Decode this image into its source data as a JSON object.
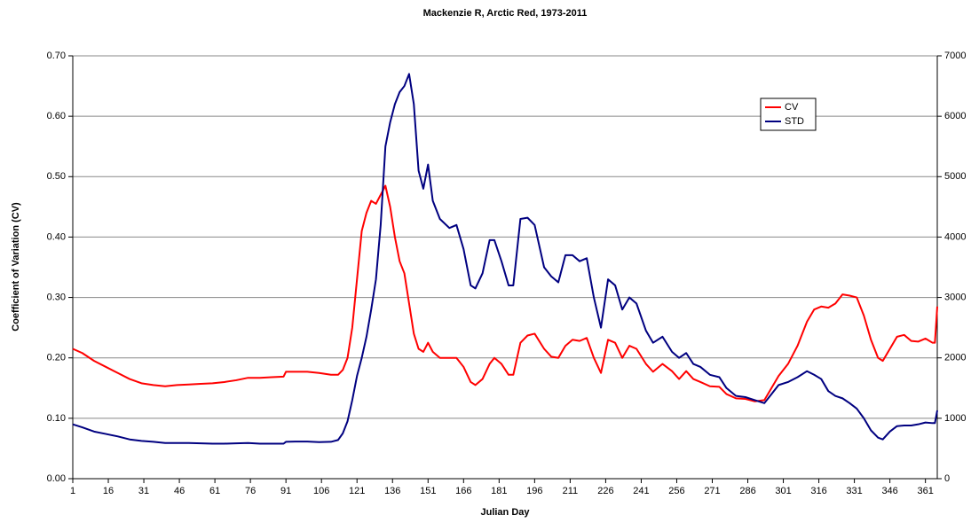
{
  "chart_data": {
    "type": "line",
    "title": "Mackenzie R, Arctic Red, 1973-2011",
    "x_label": "Julian Day",
    "y_label": "Coefficient of Variation (CV)",
    "x": [
      1,
      5,
      10,
      15,
      20,
      25,
      30,
      35,
      40,
      45,
      50,
      55,
      60,
      65,
      70,
      75,
      80,
      85,
      90,
      91,
      95,
      100,
      105,
      110,
      113,
      115,
      117,
      119,
      121,
      123,
      125,
      127,
      129,
      131,
      133,
      135,
      137,
      139,
      141,
      143,
      145,
      147,
      149,
      151,
      153,
      156,
      160,
      163,
      166,
      169,
      171,
      174,
      177,
      179,
      182,
      185,
      187,
      190,
      193,
      196,
      200,
      203,
      206,
      209,
      212,
      215,
      218,
      221,
      224,
      227,
      230,
      233,
      236,
      239,
      243,
      246,
      250,
      254,
      257,
      260,
      263,
      266,
      270,
      274,
      277,
      281,
      285,
      289,
      293,
      296,
      299,
      303,
      307,
      311,
      314,
      317,
      320,
      323,
      326,
      329,
      332,
      335,
      338,
      341,
      343,
      346,
      349,
      352,
      355,
      358,
      361,
      364,
      365,
      366
    ],
    "series": [
      {
        "name": "CV",
        "color": "#ff0000",
        "axis": "y",
        "values": [
          0.215,
          0.208,
          0.195,
          0.185,
          0.175,
          0.165,
          0.158,
          0.155,
          0.153,
          0.155,
          0.156,
          0.157,
          0.158,
          0.16,
          0.163,
          0.167,
          0.167,
          0.168,
          0.169,
          0.177,
          0.177,
          0.177,
          0.175,
          0.172,
          0.172,
          0.18,
          0.2,
          0.25,
          0.33,
          0.41,
          0.44,
          0.46,
          0.455,
          0.47,
          0.485,
          0.45,
          0.4,
          0.36,
          0.34,
          0.29,
          0.24,
          0.215,
          0.21,
          0.225,
          0.21,
          0.2,
          0.2,
          0.2,
          0.185,
          0.16,
          0.155,
          0.165,
          0.19,
          0.2,
          0.19,
          0.172,
          0.172,
          0.225,
          0.237,
          0.24,
          0.215,
          0.202,
          0.2,
          0.22,
          0.23,
          0.228,
          0.233,
          0.2,
          0.175,
          0.23,
          0.225,
          0.2,
          0.22,
          0.215,
          0.19,
          0.177,
          0.19,
          0.178,
          0.165,
          0.178,
          0.165,
          0.16,
          0.153,
          0.152,
          0.14,
          0.133,
          0.132,
          0.128,
          0.13,
          0.15,
          0.17,
          0.19,
          0.22,
          0.26,
          0.28,
          0.285,
          0.283,
          0.29,
          0.305,
          0.303,
          0.3,
          0.27,
          0.23,
          0.2,
          0.195,
          0.215,
          0.235,
          0.238,
          0.228,
          0.227,
          0.232,
          0.225,
          0.225,
          0.285
        ]
      },
      {
        "name": "STD",
        "color": "#000080",
        "axis": "y2",
        "values": [
          900,
          850,
          780,
          740,
          700,
          650,
          625,
          610,
          590,
          590,
          590,
          585,
          580,
          580,
          585,
          590,
          580,
          580,
          580,
          610,
          615,
          615,
          605,
          610,
          640,
          750,
          950,
          1300,
          1700,
          2000,
          2350,
          2800,
          3300,
          4200,
          5500,
          5900,
          6200,
          6400,
          6500,
          6700,
          6200,
          5100,
          4800,
          5200,
          4600,
          4300,
          4150,
          4200,
          3800,
          3200,
          3150,
          3400,
          3950,
          3950,
          3600,
          3200,
          3200,
          4300,
          4320,
          4200,
          3500,
          3350,
          3250,
          3700,
          3700,
          3600,
          3650,
          3000,
          2500,
          3300,
          3200,
          2800,
          3000,
          2900,
          2450,
          2250,
          2350,
          2100,
          2000,
          2080,
          1900,
          1850,
          1720,
          1680,
          1500,
          1370,
          1350,
          1300,
          1250,
          1400,
          1550,
          1600,
          1680,
          1780,
          1720,
          1650,
          1450,
          1370,
          1330,
          1250,
          1160,
          1000,
          800,
          680,
          650,
          780,
          870,
          880,
          880,
          900,
          930,
          920,
          920,
          1130
        ]
      }
    ],
    "xlim": [
      1,
      366
    ],
    "xticks": [
      1,
      16,
      31,
      46,
      61,
      76,
      91,
      106,
      121,
      136,
      151,
      166,
      181,
      196,
      211,
      226,
      241,
      256,
      271,
      286,
      301,
      316,
      331,
      346,
      361
    ],
    "ylim": [
      0,
      0.7
    ],
    "yticks": [
      {
        "value": 0,
        "label": "0.00"
      },
      {
        "value": 0.1,
        "label": "0.10"
      },
      {
        "value": 0.2,
        "label": "0.20"
      },
      {
        "value": 0.3,
        "label": "0.30"
      },
      {
        "value": 0.4,
        "label": "0.40"
      },
      {
        "value": 0.5,
        "label": "0.50"
      },
      {
        "value": 0.6,
        "label": "0.60"
      },
      {
        "value": 0.7,
        "label": "0.70"
      }
    ],
    "y2lim": [
      0,
      7000
    ],
    "y2ticks": [
      0,
      1000,
      2000,
      3000,
      4000,
      5000,
      6000,
      7000
    ],
    "grid": true,
    "legend": "upper-right"
  }
}
